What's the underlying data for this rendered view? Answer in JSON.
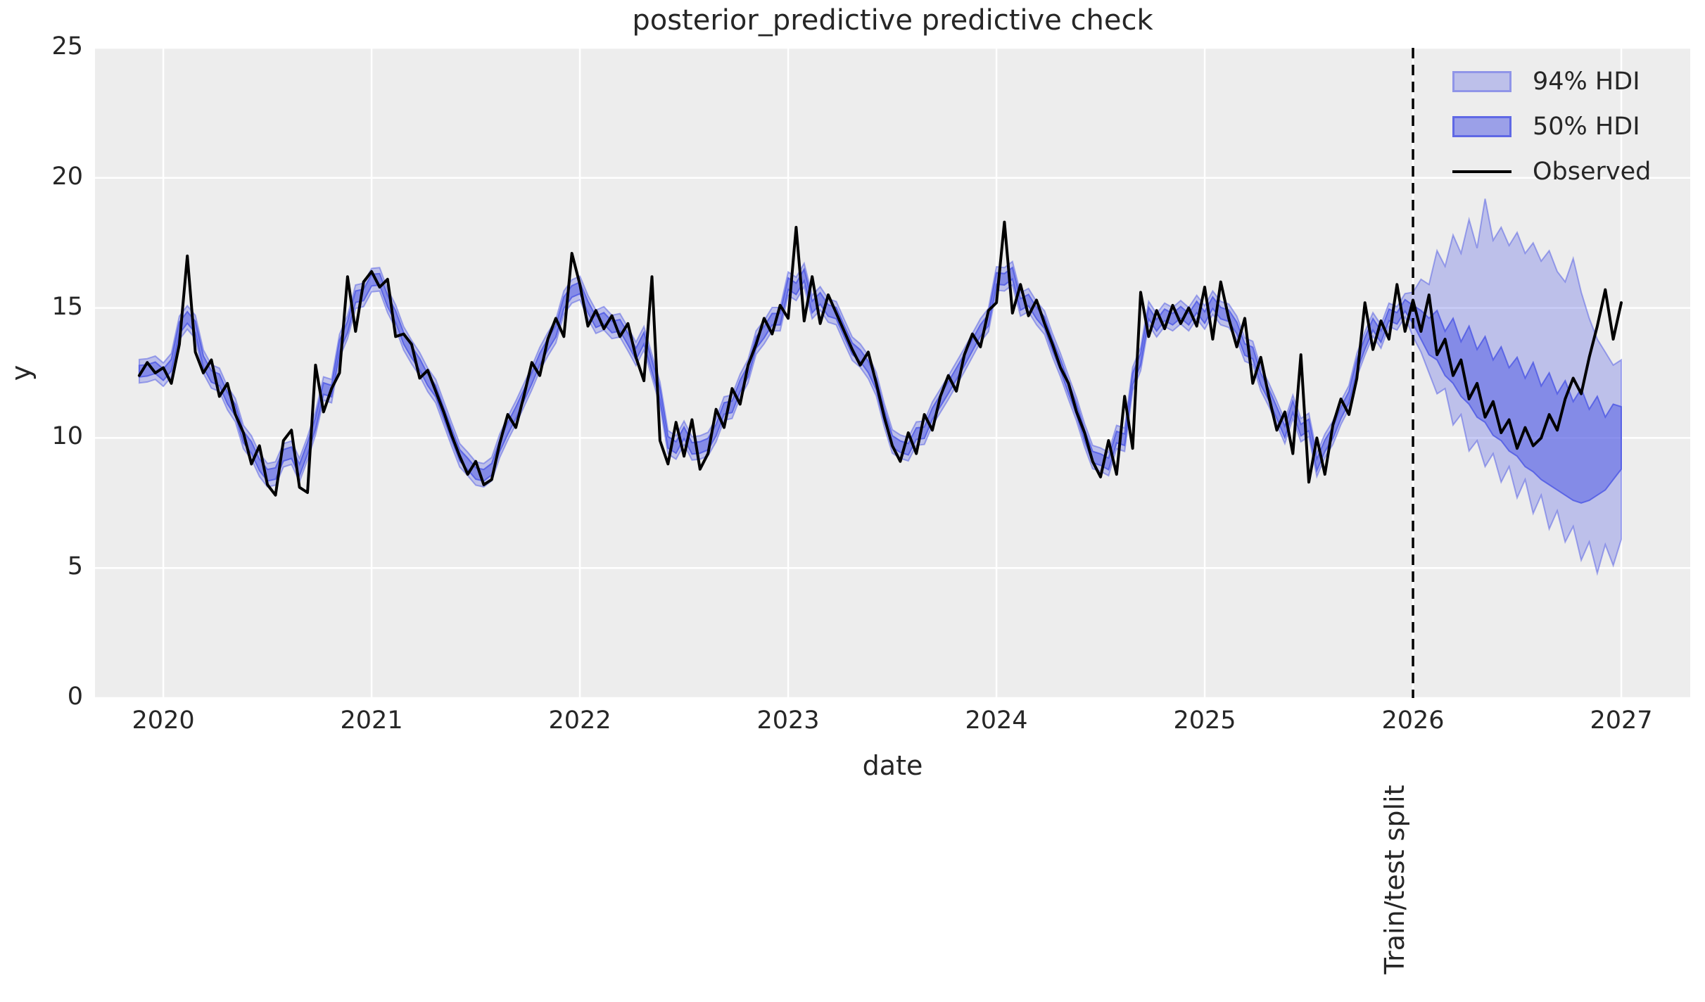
{
  "figure": {
    "title": "posterior_predictive predictive check",
    "xlabel": "date",
    "ylabel": "y",
    "split_label": "Train/test split"
  },
  "legend": [
    {
      "label": "94% HDI",
      "type": "patch",
      "style": "light"
    },
    {
      "label": "50% HDI",
      "type": "patch",
      "style": "dark"
    },
    {
      "label": "Observed",
      "type": "line"
    }
  ],
  "colors": {
    "background": "#ffffff",
    "axes_background": "#ededed",
    "grid": "#ffffff",
    "text": "#262626",
    "band_base": "#505ae4",
    "hdi94_fill": "rgba(80,90,228,0.30)",
    "hdi94_edge": "rgba(80,90,228,0.50)",
    "hdi50_fill": "rgba(80,90,228,0.52)",
    "hdi50_edge": "rgba(80,90,228,0.85)",
    "observed": "#000000",
    "split_line": "#000000"
  },
  "chart_data": {
    "type": "line",
    "title": "posterior_predictive predictive check",
    "xlabel": "date",
    "ylabel": "y",
    "xlim": [
      2019.672,
      2027.331
    ],
    "ylim": [
      0,
      25
    ],
    "xticks": [
      2020,
      2021,
      2022,
      2023,
      2024,
      2025,
      2026,
      2027
    ],
    "yticks": [
      0,
      5,
      10,
      15,
      20,
      25
    ],
    "grid": true,
    "legend_position": "upper right",
    "x_start": 2019.884615,
    "x_step": 0.038461538,
    "split_x": 2026.0,
    "split_index": 159,
    "observed": [
      12.4,
      12.9,
      12.5,
      12.7,
      12.1,
      13.6,
      17.0,
      13.3,
      12.5,
      13.0,
      11.6,
      12.1,
      10.9,
      10.2,
      9.0,
      9.7,
      8.2,
      7.8,
      9.9,
      10.3,
      8.1,
      7.9,
      12.8,
      11.0,
      11.9,
      12.5,
      16.2,
      14.1,
      16.0,
      16.4,
      15.8,
      16.1,
      13.9,
      14.0,
      13.6,
      12.3,
      12.6,
      11.8,
      11.0,
      10.1,
      9.3,
      8.6,
      9.1,
      8.2,
      8.4,
      9.8,
      10.9,
      10.4,
      11.6,
      12.9,
      12.4,
      13.8,
      14.6,
      13.9,
      17.1,
      15.9,
      14.3,
      14.9,
      14.2,
      14.7,
      13.9,
      14.4,
      13.1,
      12.2,
      16.2,
      9.9,
      9.0,
      10.6,
      9.3,
      10.7,
      8.8,
      9.4,
      11.1,
      10.4,
      11.9,
      11.3,
      12.8,
      13.6,
      14.6,
      14.0,
      15.1,
      14.6,
      18.1,
      14.5,
      16.2,
      14.4,
      15.5,
      14.8,
      14.1,
      13.4,
      12.8,
      13.3,
      12.1,
      10.8,
      9.7,
      9.1,
      10.2,
      9.4,
      10.9,
      10.3,
      11.6,
      12.4,
      11.8,
      13.2,
      14.0,
      13.5,
      14.9,
      15.2,
      18.3,
      14.8,
      15.9,
      14.7,
      15.3,
      14.4,
      13.6,
      12.7,
      12.1,
      11.0,
      10.2,
      9.1,
      8.5,
      9.9,
      8.6,
      11.6,
      9.6,
      15.6,
      13.9,
      14.9,
      14.2,
      15.1,
      14.4,
      15.0,
      14.3,
      15.8,
      13.8,
      16.0,
      14.6,
      13.5,
      14.6,
      12.1,
      13.1,
      11.6,
      10.3,
      11.0,
      9.4,
      13.2,
      8.3,
      10.0,
      8.6,
      10.5,
      11.5,
      10.9,
      12.3,
      15.2,
      13.4,
      14.5,
      13.8,
      15.9,
      14.1,
      15.3,
      14.1,
      15.5,
      13.2,
      13.8,
      12.4,
      13.0,
      11.5,
      12.1,
      10.8,
      11.4,
      10.2,
      10.7,
      9.6,
      10.4,
      9.7,
      10.0,
      10.9,
      10.3,
      11.5,
      12.3,
      11.7,
      13.1,
      14.3,
      15.7,
      13.8,
      15.2
    ],
    "hdi94": {
      "label": "94% HDI",
      "insample_halfwidth": 0.45,
      "forecast_upper": [
        15.6,
        16.1,
        15.9,
        17.2,
        16.6,
        17.8,
        17.1,
        18.4,
        17.3,
        19.2,
        17.6,
        18.1,
        17.4,
        17.9,
        17.1,
        17.5,
        16.8,
        17.2,
        16.4,
        16.0,
        16.9,
        15.6,
        14.6,
        13.8,
        13.3,
        12.8,
        13.0
      ],
      "forecast_lower": [
        13.9,
        13.3,
        12.5,
        11.7,
        11.9,
        10.5,
        10.9,
        9.5,
        9.9,
        8.9,
        9.4,
        8.3,
        8.9,
        7.7,
        8.4,
        7.1,
        7.8,
        6.5,
        7.2,
        6.0,
        6.6,
        5.3,
        6.0,
        4.8,
        5.9,
        5.1,
        6.1
      ]
    },
    "hdi50": {
      "label": "50% HDI",
      "insample_halfwidth": 0.22,
      "forecast_upper": [
        15.1,
        14.9,
        14.6,
        14.9,
        14.1,
        14.6,
        13.7,
        14.3,
        13.4,
        13.9,
        13.0,
        13.5,
        12.7,
        13.1,
        12.3,
        12.9,
        12.0,
        12.5,
        11.7,
        12.2,
        11.4,
        11.9,
        11.1,
        11.6,
        10.8,
        11.3,
        11.2
      ],
      "forecast_lower": [
        14.4,
        13.8,
        13.2,
        13.0,
        12.4,
        12.1,
        11.6,
        11.3,
        10.8,
        10.6,
        10.1,
        9.9,
        9.5,
        9.3,
        8.9,
        8.7,
        8.4,
        8.2,
        8.0,
        7.8,
        7.6,
        7.5,
        7.6,
        7.8,
        8.0,
        8.4,
        8.8
      ]
    }
  }
}
